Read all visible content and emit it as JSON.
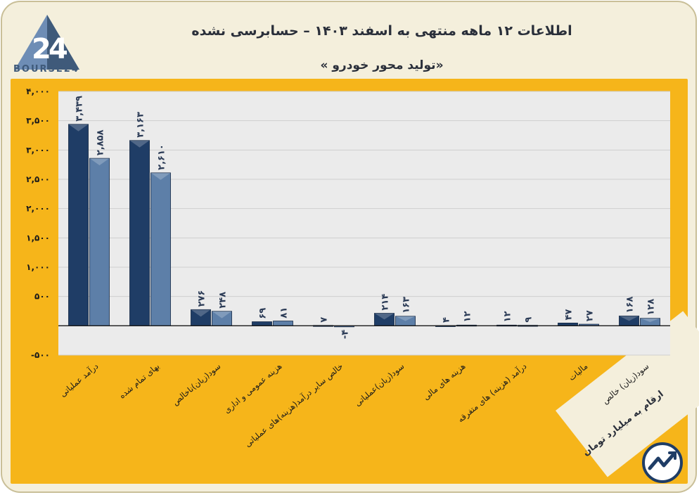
{
  "header": {
    "title": "اطلاعات ۱۲ ماهه منتهی به اسفند ۱۴۰۳ – حسابرسی نشده",
    "subtitle": "«تولید محور خودرو »",
    "logo_text": "BOURSE24",
    "unit_note": "ارقام به میلیارد تومان"
  },
  "colors": {
    "panel": "#f6b51a",
    "plot_bg": "#ebebeb",
    "series_dark": "#1f3d66",
    "series_light": "#5d7fa8"
  },
  "chart_data": {
    "type": "bar",
    "categories": [
      "درآمد عملیاتی",
      "بهای تمام شده",
      "سود(زیان)ناخالص",
      "هزینه عمومی و اداری",
      "خالص سایر درآمد(هزینه)های عملیاتی",
      "سود(زیان)عملیاتی",
      "هزینه های مالی",
      "درآمد (هزینه) های متفرقه",
      "مالیات",
      "سود(زیان) خالص"
    ],
    "series": [
      {
        "values": [
          3439,
          3163,
          276,
          69,
          7,
          214,
          4,
          12,
          47,
          168
        ]
      },
      {
        "values": [
          2858,
          2610,
          248,
          81,
          -4,
          163,
          12,
          9,
          27,
          128
        ]
      }
    ],
    "value_labels": [
      [
        "۳,۴۳۹",
        "۳,۱۶۳",
        "۲۷۶",
        "۶۹",
        "۷",
        "۲۱۴",
        "۴",
        "۱۲",
        "۴۷",
        "۱۶۸"
      ],
      [
        "۲,۸۵۸",
        "۲,۶۱۰",
        "۲۴۸",
        "۸۱",
        "-۴",
        "۱۶۳",
        "۱۲",
        "۹",
        "۲۷",
        "۱۲۸"
      ]
    ],
    "ylim": [
      -500,
      4000
    ],
    "yticks": [
      -500,
      500,
      1000,
      1500,
      2000,
      2500,
      3000,
      3500,
      4000
    ],
    "ytick_labels": [
      "-۵۰۰",
      "۵۰۰",
      "۱,۰۰۰",
      "۱,۵۰۰",
      "۲,۰۰۰",
      "۲,۵۰۰",
      "۳,۰۰۰",
      "۳,۵۰۰",
      "۴,۰۰۰"
    ],
    "grid": true,
    "legend": "none"
  }
}
